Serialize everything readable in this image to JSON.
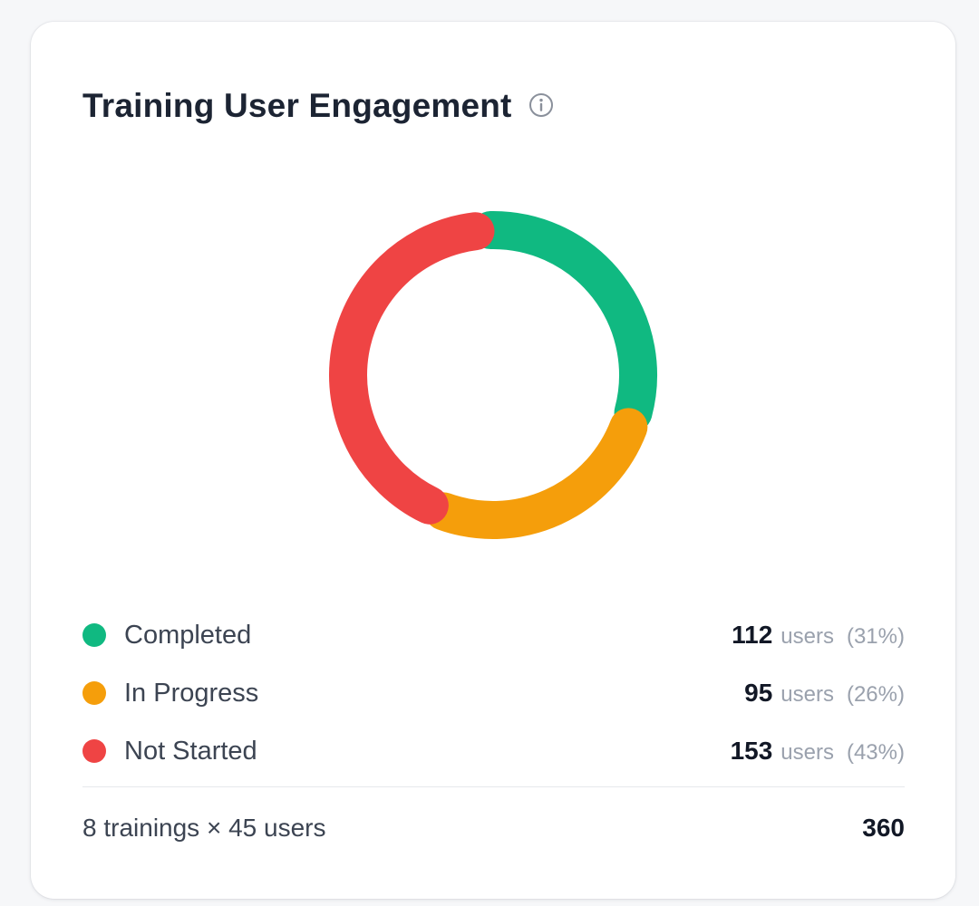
{
  "card": {
    "title": "Training User Engagement",
    "info_icon": "info-circle-icon"
  },
  "chart_data": {
    "type": "pie",
    "variant": "donut",
    "categories": [
      "Completed",
      "In Progress",
      "Not Started"
    ],
    "values": [
      112,
      95,
      153
    ],
    "percentages": [
      31,
      26,
      43
    ],
    "colors": [
      "#10b981",
      "#f59e0b",
      "#ef4444"
    ],
    "total": 360
  },
  "legend": {
    "unit_label": "users",
    "items": [
      {
        "label": "Completed",
        "count": "112",
        "pct": "(31%)",
        "color": "#10b981"
      },
      {
        "label": "In Progress",
        "count": "95",
        "pct": "(26%)",
        "color": "#f59e0b"
      },
      {
        "label": "Not Started",
        "count": "153",
        "pct": "(43%)",
        "color": "#ef4444"
      }
    ]
  },
  "footer": {
    "summary": "8 trainings × 45 users",
    "total": "360"
  }
}
